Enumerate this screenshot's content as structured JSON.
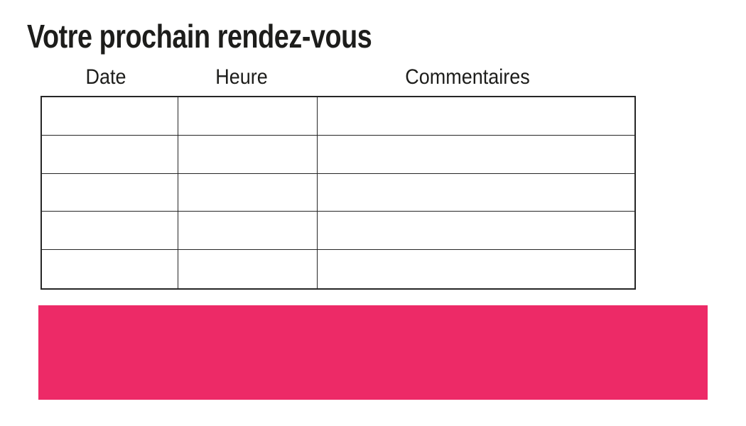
{
  "page": {
    "title": "Votre prochain rendez-vous"
  },
  "table": {
    "columns": [
      {
        "label": "Date"
      },
      {
        "label": "Heure"
      },
      {
        "label": "Commentaires"
      }
    ],
    "row_count": 5,
    "rows": [
      [
        "",
        "",
        ""
      ],
      [
        "",
        "",
        ""
      ],
      [
        "",
        "",
        ""
      ],
      [
        "",
        "",
        ""
      ],
      [
        "",
        "",
        ""
      ]
    ]
  },
  "banner": {
    "text": ""
  },
  "colors": {
    "accent": "#ED2A67",
    "ink": "#1D1D1B",
    "border": "#262626",
    "bg": "#FFFFFF"
  }
}
